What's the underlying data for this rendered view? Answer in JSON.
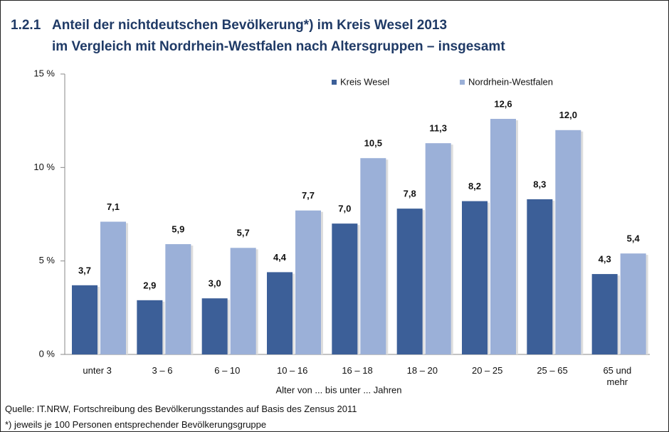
{
  "chart_data": {
    "type": "bar",
    "title_number": "1.2.1",
    "title": [
      "Anteil der nichtdeutschen Bevölkerung*) im Kreis Wesel 2013",
      "im Vergleich mit Nordrhein-Westfalen nach Altersgruppen – insgesamt"
    ],
    "categories": [
      "unter 3",
      "3 – 6",
      "6 – 10",
      "10 – 16",
      "16 – 18",
      "18 – 20",
      "20 – 25",
      "25 – 65",
      "65 und mehr"
    ],
    "series": [
      {
        "name": "Kreis Wesel",
        "color": "#3c5f98",
        "values": [
          3.7,
          2.9,
          3.0,
          4.4,
          7.0,
          7.8,
          8.2,
          8.3,
          4.3
        ],
        "value_labels": [
          "3,7",
          "2,9",
          "3,0",
          "4,4",
          "7,0",
          "7,8",
          "8,2",
          "8,3",
          "4,3"
        ]
      },
      {
        "name": "Nordrhein-Westfalen",
        "color": "#9bb0d8",
        "values": [
          7.1,
          5.9,
          5.7,
          7.7,
          10.5,
          11.3,
          12.6,
          12.0,
          5.4
        ],
        "value_labels": [
          "7,1",
          "5,9",
          "5,7",
          "7,7",
          "10,5",
          "11,3",
          "12,6",
          "12,0",
          "5,4"
        ]
      }
    ],
    "ylim": [
      0,
      15
    ],
    "yticks": [
      {
        "value": 0,
        "label": "0 %"
      },
      {
        "value": 5,
        "label": "5 %"
      },
      {
        "value": 10,
        "label": "10 %"
      },
      {
        "value": 15,
        "label": "15 %"
      }
    ],
    "x_label": "Alter von ... bis unter ... Jahren",
    "source": "Quelle: IT.NRW, Fortschreibung des Bevölkerungsstandes auf Basis des Zensus 2011",
    "footnote": "*) jeweils je 100 Personen entsprechender Bevölkerungsgruppe"
  }
}
